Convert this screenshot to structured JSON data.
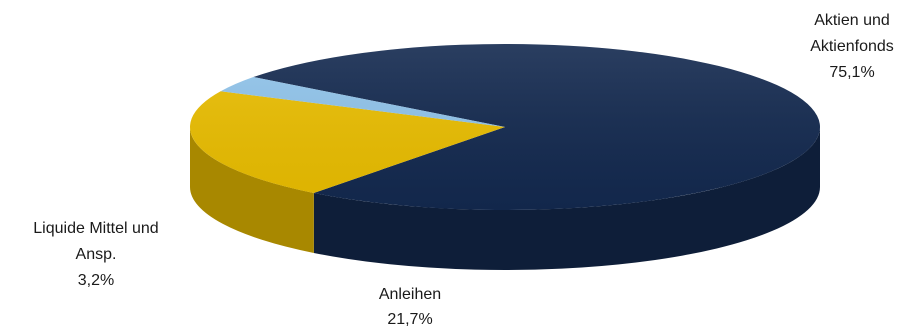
{
  "chart_data": {
    "type": "pie",
    "style": "3d",
    "legend": "none",
    "slices": [
      {
        "label_lines": [
          "Aktien und",
          "Aktienfonds"
        ],
        "value": 75.1,
        "value_label": "75,1%",
        "color": "#13294f"
      },
      {
        "label_lines": [
          "Anleihen"
        ],
        "value": 21.7,
        "value_label": "21,7%",
        "color": "#e9bd00"
      },
      {
        "label_lines": [
          "Liquide Mittel und",
          "Ansp."
        ],
        "value": 3.2,
        "value_label": "3,2%",
        "color": "#8fc3ea"
      }
    ]
  }
}
